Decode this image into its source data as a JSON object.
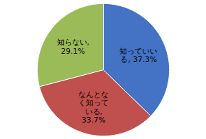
{
  "chart_data": {
    "type": "pie",
    "categories": [
      "知っていい\nる, 37.3%",
      "なんとな\nく知って\nいる,\n33.7%",
      "知らない,\n29.1%"
    ],
    "values": [
      37.3,
      33.7,
      29.1
    ],
    "colors": [
      "#4472c4",
      "#c0504d",
      "#9bbb59"
    ]
  }
}
